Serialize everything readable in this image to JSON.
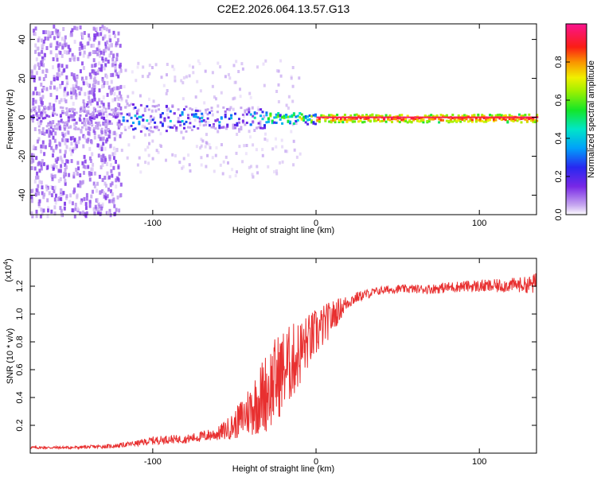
{
  "title": "C2E2.2026.064.13.57.G13",
  "chart_data": [
    {
      "type": "heatmap",
      "name": "spectrogram",
      "xlabel": "Height of straight line (km)",
      "ylabel": "Frequency (Hz)",
      "xlim": [
        -175,
        135
      ],
      "ylim": [
        -50,
        48
      ],
      "x_ticks": [
        -100,
        0,
        100
      ],
      "y_ticks": [
        -40,
        -20,
        0,
        20,
        40
      ],
      "colorbar": {
        "label": "Normalized spectral amplitude",
        "range": [
          0,
          1
        ],
        "ticks": [
          0.0,
          0.2,
          0.4,
          0.6,
          0.8
        ],
        "tick_labels": [
          "0.0",
          "0.2",
          "0.4",
          "0.6",
          "0.8"
        ]
      },
      "description_regions": [
        {
          "x_range": [
            -175,
            -120
          ],
          "behavior": "broadband noise across all frequencies, amplitude < 0.2"
        },
        {
          "x_range": [
            -120,
            -30
          ],
          "frequency_center": 0,
          "frequency_spread": 8,
          "amplitude_range": [
            0.2,
            0.5
          ]
        },
        {
          "x_range": [
            -30,
            0
          ],
          "frequency_center": 0,
          "frequency_spread": 3,
          "amplitude_range": [
            0.4,
            0.9
          ]
        },
        {
          "x_range": [
            0,
            135
          ],
          "frequency_center": 0,
          "frequency_spread": 2,
          "amplitude_range": [
            0.8,
            1.0
          ]
        }
      ]
    },
    {
      "type": "line",
      "name": "snr",
      "xlabel": "Height of straight line (km)",
      "ylabel": "SNR (10 * v/v)",
      "y_multiplier_label": "(x10",
      "y_multiplier_exp": "4",
      "y_multiplier_close": ")",
      "xlim": [
        -175,
        135
      ],
      "ylim": [
        0,
        1.4
      ],
      "x_ticks": [
        -100,
        0,
        100
      ],
      "y_ticks": [
        0.2,
        0.4,
        0.6,
        0.8,
        1.0,
        1.2
      ],
      "series": [
        {
          "name": "SNR",
          "color": "#e83030",
          "x": [
            -175,
            -150,
            -125,
            -110,
            -100,
            -90,
            -80,
            -70,
            -60,
            -50,
            -45,
            -40,
            -35,
            -30,
            -25,
            -20,
            -15,
            -10,
            -5,
            0,
            5,
            10,
            15,
            20,
            25,
            30,
            40,
            50,
            60,
            70,
            80,
            90,
            100,
            110,
            120,
            130,
            135
          ],
          "values": [
            0.04,
            0.04,
            0.05,
            0.07,
            0.09,
            0.1,
            0.1,
            0.12,
            0.14,
            0.2,
            0.26,
            0.32,
            0.38,
            0.45,
            0.52,
            0.6,
            0.65,
            0.72,
            0.8,
            0.86,
            0.92,
            0.98,
            1.04,
            1.09,
            1.12,
            1.14,
            1.17,
            1.18,
            1.18,
            1.18,
            1.19,
            1.2,
            1.2,
            1.2,
            1.21,
            1.21,
            1.22
          ],
          "noise_amplitude": [
            0.01,
            0.01,
            0.015,
            0.02,
            0.03,
            0.03,
            0.03,
            0.04,
            0.05,
            0.1,
            0.15,
            0.2,
            0.25,
            0.3,
            0.32,
            0.3,
            0.28,
            0.25,
            0.2,
            0.18,
            0.15,
            0.12,
            0.08,
            0.05,
            0.04,
            0.035,
            0.03,
            0.03,
            0.03,
            0.035,
            0.04,
            0.04,
            0.045,
            0.05,
            0.05,
            0.06,
            0.08
          ]
        }
      ]
    }
  ],
  "colors": {
    "line": "#e83030",
    "axis": "#000000"
  }
}
